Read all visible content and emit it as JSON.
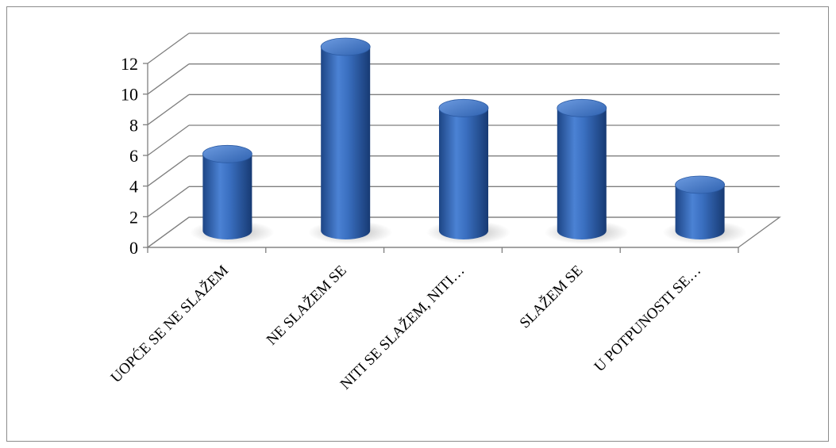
{
  "chart_data": {
    "type": "bar",
    "style": "3d-cylinder",
    "categories": [
      "UOPĆE SE NE SLAŽEM",
      "NE SLAŽEM SE",
      "NITI SE SLAŽEM, NITI…",
      "SLAŽEM SE",
      "U POTPUNOSTI SE…"
    ],
    "series": [
      {
        "values": [
          5,
          12,
          8,
          8,
          3
        ]
      }
    ],
    "ylim": [
      0,
      12
    ],
    "yticks": [
      "0",
      "2",
      "4",
      "6",
      "8",
      "10",
      "12"
    ],
    "grid": true,
    "legend": "none",
    "colors": {
      "bar": "#3a6fc0",
      "bar_dark": "#1d4585",
      "bar_light": "#7fa7e3",
      "grid": "#7f7f7f"
    }
  }
}
